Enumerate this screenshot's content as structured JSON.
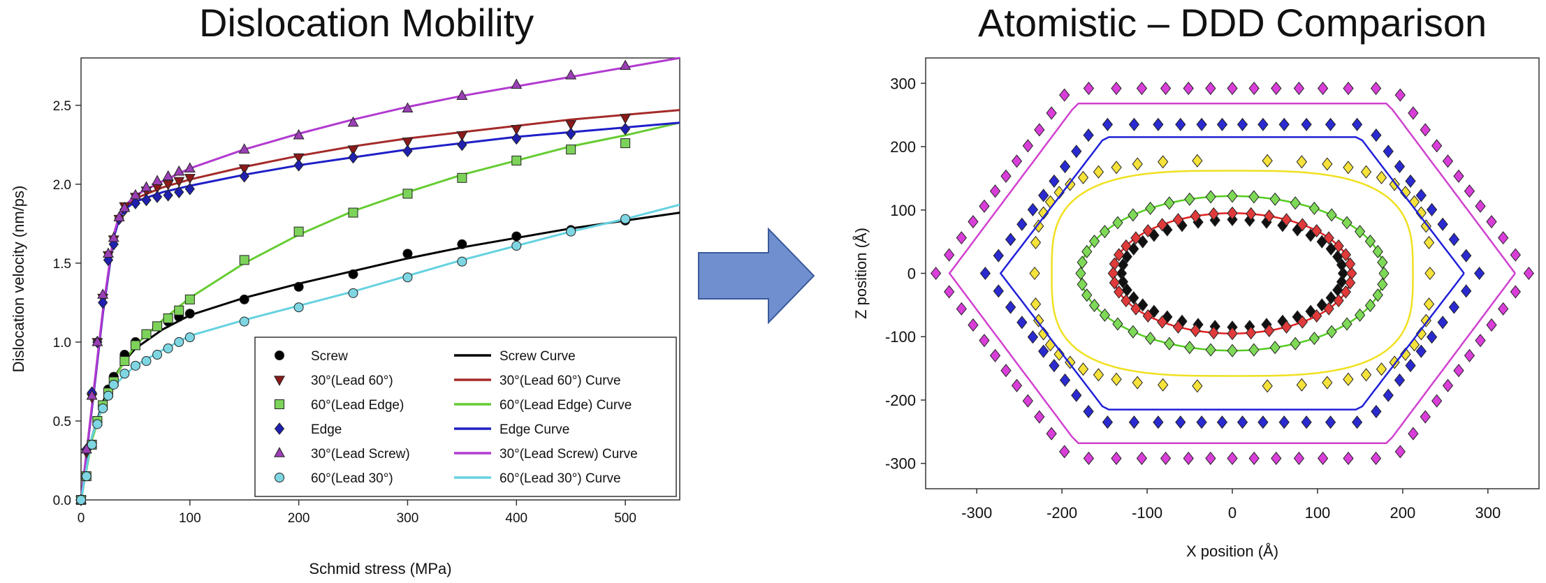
{
  "left_panel_title": "Dislocation Mobility",
  "right_panel_title": "Atomistic – DDD Comparison",
  "arrow_color": "#6f8fcf",
  "chart_data": [
    {
      "type": "scatter",
      "title": "",
      "xlabel": "Schmid stress (MPa)",
      "ylabel": "Dislocation velocity (nm/ps)",
      "xlim": [
        0,
        550
      ],
      "ylim": [
        0,
        2.8
      ],
      "xticks": [
        0,
        100,
        200,
        300,
        400,
        500
      ],
      "yticks": [
        0.0,
        0.5,
        1.0,
        1.5,
        2.0,
        2.5
      ],
      "grid": false,
      "legend_position": "bottom-right",
      "series": [
        {
          "name": "Screw",
          "kind": "markers",
          "marker": "circle",
          "color": "#000000",
          "x": [
            0,
            5,
            10,
            15,
            20,
            25,
            30,
            40,
            50,
            60,
            70,
            80,
            90,
            100,
            150,
            200,
            250,
            300,
            350,
            400,
            450,
            500
          ],
          "y": [
            0,
            0.15,
            0.35,
            0.5,
            0.6,
            0.7,
            0.78,
            0.92,
            1.0,
            1.05,
            1.1,
            1.13,
            1.16,
            1.18,
            1.27,
            1.35,
            1.43,
            1.56,
            1.62,
            1.67,
            1.71,
            1.77
          ]
        },
        {
          "name": "30°(Lead 60°)",
          "kind": "markers",
          "marker": "triangle-down",
          "color": "#8b1a1a",
          "x": [
            0,
            5,
            10,
            15,
            20,
            25,
            30,
            35,
            40,
            50,
            60,
            70,
            80,
            90,
            100,
            150,
            200,
            250,
            300,
            350,
            400,
            450,
            500
          ],
          "y": [
            0,
            0.3,
            0.65,
            1.0,
            1.28,
            1.55,
            1.65,
            1.78,
            1.86,
            1.92,
            1.96,
            1.98,
            2.0,
            2.02,
            2.04,
            2.1,
            2.17,
            2.22,
            2.27,
            2.31,
            2.35,
            2.38,
            2.42
          ]
        },
        {
          "name": "60°(Lead Edge)",
          "kind": "markers",
          "marker": "square",
          "color": "#7dd35a",
          "x": [
            0,
            5,
            10,
            15,
            20,
            25,
            30,
            40,
            50,
            60,
            70,
            80,
            90,
            100,
            150,
            200,
            250,
            300,
            350,
            400,
            450,
            500
          ],
          "y": [
            0,
            0.15,
            0.35,
            0.5,
            0.6,
            0.68,
            0.75,
            0.88,
            0.98,
            1.05,
            1.1,
            1.15,
            1.2,
            1.27,
            1.52,
            1.7,
            1.82,
            1.94,
            2.04,
            2.15,
            2.22,
            2.26
          ]
        },
        {
          "name": "Edge",
          "kind": "markers",
          "marker": "diamond",
          "color": "#1f1fb0",
          "x": [
            0,
            5,
            10,
            15,
            20,
            25,
            30,
            35,
            40,
            50,
            60,
            70,
            80,
            90,
            100,
            150,
            200,
            250,
            300,
            350,
            400,
            450,
            500
          ],
          "y": [
            0,
            0.32,
            0.68,
            1.0,
            1.25,
            1.52,
            1.62,
            1.78,
            1.84,
            1.88,
            1.9,
            1.92,
            1.93,
            1.95,
            1.97,
            2.05,
            2.12,
            2.17,
            2.21,
            2.25,
            2.29,
            2.32,
            2.35
          ]
        },
        {
          "name": "30°(Lead Screw)",
          "kind": "markers",
          "marker": "triangle-up",
          "color": "#9b3fb5",
          "x": [
            0,
            5,
            10,
            15,
            20,
            25,
            30,
            35,
            40,
            50,
            60,
            70,
            80,
            90,
            100,
            150,
            200,
            250,
            300,
            350,
            400,
            450,
            500
          ],
          "y": [
            0,
            0.32,
            0.66,
            1.0,
            1.3,
            1.56,
            1.66,
            1.79,
            1.85,
            1.93,
            1.98,
            2.02,
            2.05,
            2.08,
            2.1,
            2.22,
            2.31,
            2.39,
            2.48,
            2.56,
            2.63,
            2.69,
            2.75
          ]
        },
        {
          "name": "60°(Lead 30°)",
          "kind": "markers",
          "marker": "circle",
          "color": "#7fd6e3",
          "x": [
            0,
            5,
            10,
            15,
            20,
            25,
            30,
            40,
            50,
            60,
            70,
            80,
            90,
            100,
            150,
            200,
            250,
            300,
            350,
            400,
            450,
            500
          ],
          "y": [
            0,
            0.15,
            0.35,
            0.48,
            0.58,
            0.66,
            0.73,
            0.8,
            0.85,
            0.88,
            0.92,
            0.96,
            1.0,
            1.03,
            1.13,
            1.22,
            1.31,
            1.41,
            1.51,
            1.61,
            1.7,
            1.78
          ]
        },
        {
          "name": "Screw Curve",
          "kind": "line",
          "color": "#000000",
          "x": [
            0,
            10,
            20,
            30,
            40,
            50,
            75,
            100,
            150,
            200,
            250,
            300,
            350,
            400,
            450,
            500,
            550
          ],
          "y": [
            0,
            0.4,
            0.62,
            0.77,
            0.88,
            0.96,
            1.08,
            1.17,
            1.28,
            1.37,
            1.45,
            1.53,
            1.6,
            1.66,
            1.72,
            1.77,
            1.82
          ]
        },
        {
          "name": "30°(Lead 60°) Curve",
          "kind": "line",
          "color": "#a52a2a",
          "x": [
            0,
            10,
            20,
            30,
            35,
            40,
            50,
            75,
            100,
            150,
            200,
            250,
            300,
            350,
            400,
            450,
            500,
            550
          ],
          "y": [
            0,
            0.58,
            1.18,
            1.66,
            1.78,
            1.85,
            1.91,
            1.98,
            2.03,
            2.11,
            2.18,
            2.24,
            2.29,
            2.33,
            2.37,
            2.41,
            2.44,
            2.47
          ]
        },
        {
          "name": "60°(Lead Edge) Curve",
          "kind": "line",
          "color": "#66cc33",
          "x": [
            0,
            10,
            20,
            30,
            40,
            50,
            75,
            100,
            150,
            200,
            250,
            300,
            350,
            400,
            450,
            500,
            550
          ],
          "y": [
            0,
            0.38,
            0.6,
            0.76,
            0.88,
            0.98,
            1.14,
            1.28,
            1.5,
            1.68,
            1.83,
            1.95,
            2.06,
            2.15,
            2.24,
            2.31,
            2.39
          ]
        },
        {
          "name": "Edge Curve",
          "kind": "line",
          "color": "#1e1ec8",
          "x": [
            0,
            10,
            20,
            30,
            35,
            40,
            50,
            75,
            100,
            150,
            200,
            250,
            300,
            350,
            400,
            450,
            500,
            550
          ],
          "y": [
            0,
            0.58,
            1.18,
            1.66,
            1.78,
            1.84,
            1.89,
            1.95,
            1.99,
            2.06,
            2.12,
            2.17,
            2.22,
            2.26,
            2.3,
            2.33,
            2.36,
            2.39
          ]
        },
        {
          "name": "30°(Lead Screw) Curve",
          "kind": "line",
          "color": "#b23ad0",
          "x": [
            0,
            10,
            20,
            30,
            35,
            40,
            50,
            75,
            100,
            150,
            200,
            250,
            300,
            350,
            400,
            450,
            500,
            550
          ],
          "y": [
            0,
            0.6,
            1.2,
            1.68,
            1.8,
            1.86,
            1.93,
            2.02,
            2.1,
            2.22,
            2.32,
            2.41,
            2.49,
            2.56,
            2.62,
            2.68,
            2.74,
            2.8
          ]
        },
        {
          "name": "60°(Lead 30°) Curve",
          "kind": "line",
          "color": "#66d2e0",
          "x": [
            0,
            10,
            20,
            30,
            40,
            50,
            75,
            100,
            150,
            200,
            250,
            300,
            350,
            400,
            450,
            500,
            550
          ],
          "y": [
            0,
            0.4,
            0.6,
            0.72,
            0.79,
            0.85,
            0.95,
            1.04,
            1.14,
            1.23,
            1.32,
            1.42,
            1.52,
            1.61,
            1.7,
            1.78,
            1.87
          ]
        }
      ]
    },
    {
      "type": "scatter",
      "title": "",
      "xlabel": "X position (Å)",
      "ylabel": "Z position (Å)",
      "xlim": [
        -360,
        360
      ],
      "ylim": [
        -340,
        340
      ],
      "xticks": [
        -300,
        -200,
        -100,
        0,
        100,
        200,
        300
      ],
      "yticks": [
        -300,
        -200,
        -100,
        0,
        100,
        200,
        300
      ],
      "grid": false,
      "legend_position": "none",
      "loops": [
        {
          "marker_color": "#111111",
          "curve_color": "",
          "rx": 130,
          "rz": 85,
          "shape": "ellipse",
          "n": 40
        },
        {
          "marker_color": "#e03a3a",
          "curve_color": "#e02020",
          "rx": 140,
          "rz": 95,
          "shape": "ellipse",
          "n": 40
        },
        {
          "marker_color": "#7ed957",
          "curve_color": "#55cc22",
          "rx": 178,
          "rz": 122,
          "shape": "ellipse",
          "n": 44
        },
        {
          "marker_color": "#f5e23a",
          "curve_color": "#f0e020",
          "rx": 232,
          "rz": 178,
          "rx_curve": 212,
          "rz_curve": 162,
          "shape": "superellipse",
          "n": 50
        },
        {
          "marker_color": "#2a2ad0",
          "curve_color": "#2020d8",
          "rx": 290,
          "rz": 235,
          "rx_curve": 272,
          "rz_curve": 215,
          "shape": "hexagonal",
          "n": 62
        },
        {
          "marker_color": "#d93ed9",
          "curve_color": "#d040d0",
          "rx": 348,
          "rz": 292,
          "rx_curve": 332,
          "rz_curve": 268,
          "shape": "hexagonal",
          "n": 72
        }
      ]
    }
  ]
}
